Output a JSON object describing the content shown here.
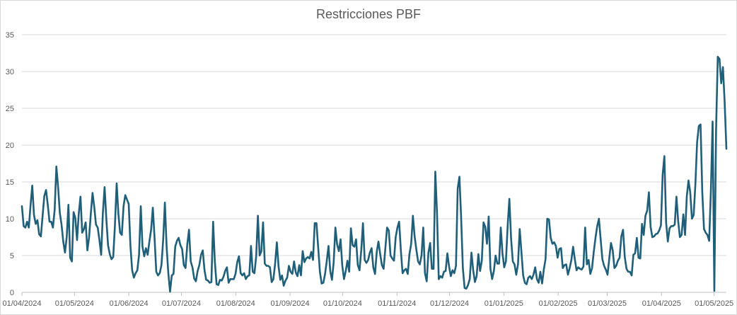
{
  "chart_data": {
    "type": "line",
    "title": "Restricciones PBF",
    "xlabel": "",
    "ylabel": "",
    "x_start": "01/04/2024",
    "x_end": "08/05/2025",
    "ylim": [
      0,
      35
    ],
    "yticks": [
      0,
      5,
      10,
      15,
      20,
      25,
      30,
      35
    ],
    "xticks": [
      "01/04/2024",
      "01/05/2024",
      "01/06/2024",
      "01/07/2024",
      "01/08/2024",
      "01/09/2024",
      "01/10/2024",
      "01/11/2024",
      "01/12/2024",
      "01/01/2025",
      "01/02/2025",
      "01/03/2025",
      "01/04/2025",
      "01/05/2025"
    ],
    "grid": "horizontal",
    "legend": "none",
    "colors": {
      "line": "#1f5f7a",
      "grid": "#d9d9d9",
      "axis": "#bfbfbf",
      "text": "#595959"
    },
    "series": [
      {
        "values": [
          11.7,
          9,
          8.8,
          9.6,
          8.8,
          11.8,
          14.5,
          10.5,
          9.3,
          9.8,
          7.9,
          7.6,
          10.4,
          13.1,
          13.9,
          11.9,
          9.6,
          9.6,
          8.8,
          11.2,
          17.1,
          14.3,
          10.8,
          9.2,
          6.9,
          5.4,
          7.5,
          11.9,
          4.7,
          4.2,
          10.9,
          10.1,
          7.1,
          10.7,
          13,
          8.1,
          8.6,
          9.5,
          5.7,
          7.5,
          10.7,
          13.5,
          11.6,
          9.2,
          8.8,
          7.1,
          5.1,
          10.8,
          14.3,
          10,
          6.4,
          5.2,
          4.5,
          4.8,
          9.1,
          14.8,
          10.7,
          8.1,
          7.8,
          11.7,
          13.2,
          12.6,
          12,
          6.3,
          3,
          2,
          2.6,
          3,
          5.1,
          11.7,
          6.2,
          4.9,
          6,
          5.1,
          6.9,
          8.5,
          11.5,
          7.4,
          2.8,
          2.3,
          2.6,
          3.7,
          7.1,
          12.2,
          6.2,
          2.6,
          0.1,
          2.3,
          2.5,
          6.2,
          7,
          7.4,
          6.4,
          5.9,
          3.7,
          3.3,
          6.5,
          8.5,
          4.2,
          3.4,
          1.9,
          1.5,
          2.9,
          3.7,
          5.1,
          5.7,
          3,
          1.7,
          1.6,
          1.3,
          1.4,
          9.6,
          4.2,
          1.1,
          1,
          1.7,
          1.6,
          2.1,
          2.9,
          3.4,
          1.3,
          1.8,
          1.8,
          1.8,
          2.5,
          4.1,
          4.9,
          2.6,
          2.3,
          2.6,
          1.8,
          2.2,
          2.3,
          6.3,
          2.8,
          2.6,
          4.9,
          10.4,
          5,
          5.6,
          9.5,
          3.9,
          3.6,
          3.6,
          3.4,
          1.4,
          1.8,
          3.9,
          6.8,
          3.5,
          1.7,
          2.3,
          0.9,
          1.6,
          2,
          3.6,
          2.8,
          2.5,
          4.2,
          2.7,
          2.2,
          3.7,
          2.3,
          5.6,
          4.1,
          4.6,
          4.8,
          4.6,
          5.5,
          4.4,
          9.4,
          9.4,
          6.1,
          2.8,
          1.2,
          1.3,
          2.5,
          4.3,
          6.3,
          2.9,
          1.7,
          4.1,
          8.8,
          6.5,
          5.6,
          7.2,
          3.6,
          1.8,
          2.9,
          4.3,
          2.8,
          8.7,
          6.4,
          6.2,
          7.2,
          3.7,
          3,
          5.7,
          9.4,
          4.4,
          4,
          4.4,
          5.4,
          6,
          3.4,
          2.5,
          5.5,
          6.9,
          5.2,
          3.7,
          3.2,
          6,
          8.8,
          8.4,
          5,
          4.6,
          4.3,
          7.5,
          8.8,
          9.6,
          5.7,
          2.6,
          3,
          3.2,
          2.5,
          5.2,
          6.6,
          10.4,
          7.6,
          5.8,
          4.2,
          3.8,
          5,
          8.8,
          2.6,
          1.5,
          5.4,
          6.7,
          3.2,
          3.2,
          16.4,
          10.7,
          1.8,
          2.2,
          2,
          2.8,
          2.9,
          5.3,
          3.5,
          2.2,
          3,
          2.6,
          3.6,
          14.1,
          15.7,
          10.1,
          3.3,
          0.6,
          0.5,
          1,
          1.8,
          5.4,
          3,
          1.4,
          2.2,
          5.2,
          2.9,
          4.3,
          9.5,
          8.9,
          6.6,
          10.3,
          3.2,
          1.8,
          2.9,
          5,
          3.9,
          3.9,
          8.8,
          5.3,
          3.4,
          4.2,
          9,
          12.7,
          7.3,
          4.2,
          3.8,
          2.4,
          3.8,
          8.6,
          5.5,
          2.3,
          1.3,
          1.1,
          2,
          2.2,
          1.8,
          2.4,
          3.4,
          1.8,
          1.3,
          2.8,
          1.2,
          3.1,
          4.5,
          10,
          9.9,
          7.4,
          6.6,
          6.8,
          6.3,
          4.7,
          5.9,
          6,
          3.3,
          3.7,
          3.8,
          2.4,
          3.3,
          4.4,
          6.2,
          4.5,
          3,
          3.4,
          3.2,
          3.1,
          3.5,
          8.8,
          3.8,
          4.4,
          2.5,
          3.3,
          5.5,
          7.4,
          9,
          10,
          7.2,
          4.5,
          3.6,
          3.1,
          2.4,
          4.6,
          6.7,
          5.7,
          3.3,
          3.6,
          4.3,
          4.7,
          7.6,
          8.5,
          4.8,
          3.2,
          2.8,
          2.8,
          2.3,
          5.1,
          5.3,
          7.4,
          4.7,
          4.6,
          9.3,
          7.8,
          10.4,
          11.1,
          13.6,
          8.9,
          7.5,
          7.6,
          7.9,
          8,
          8.4,
          9.1,
          16,
          18.5,
          9.5,
          6.9,
          8.7,
          9,
          9,
          9.2,
          13,
          9.7,
          7.5,
          7.8,
          10.6,
          7.8,
          13,
          15.2,
          13.6,
          10,
          10.5,
          14.7,
          20.4,
          22.6,
          22.8,
          13.6,
          8.6,
          8.1,
          7.8,
          7,
          13.8,
          23.2,
          0.2,
          22,
          32,
          31.7,
          28.4,
          30.6,
          25.8,
          19.5
        ]
      }
    ]
  }
}
